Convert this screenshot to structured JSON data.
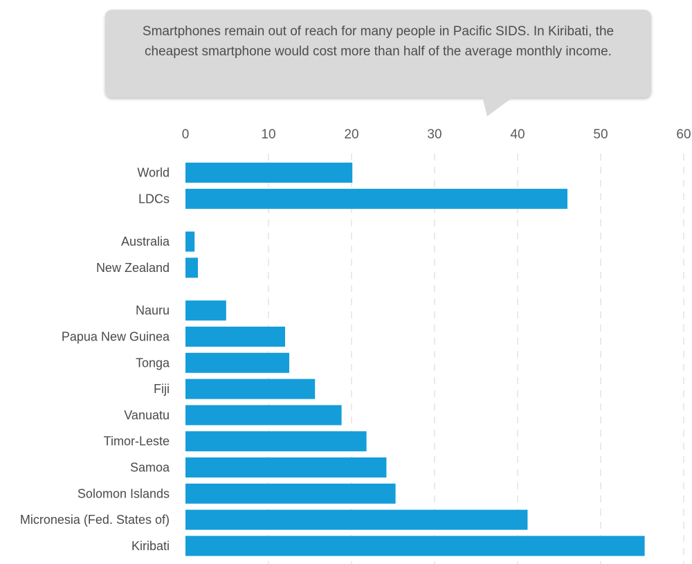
{
  "annotation": "Smartphones remain out of reach for many people in Pacific SIDS. In Kiribati, the cheapest smartphone would cost more than half of the average monthly income.",
  "colors": {
    "bar": "#159dd9",
    "grid": "#d6d6d6",
    "callout": "#d9d9d9"
  },
  "chart_data": {
    "type": "bar",
    "orientation": "horizontal",
    "title": "",
    "xlabel": "",
    "ylabel": "",
    "xlim": [
      0,
      60
    ],
    "ticks": [
      0,
      10,
      20,
      30,
      40,
      50,
      60
    ],
    "grid": true,
    "grid_style": "dashed vertical",
    "axis_position": "top",
    "categories": [
      "World",
      "LDCs",
      "Australia",
      "New Zealand",
      "Nauru",
      "Papua New Guinea",
      "Tonga",
      "Fiji",
      "Vanuatu",
      "Timor-Leste",
      "Samoa",
      "Solomon Islands",
      "Micronesia (Fed. States of)",
      "Kiribati"
    ],
    "groups": [
      [
        "World",
        "LDCs"
      ],
      [
        "Australia",
        "New Zealand"
      ],
      [
        "Nauru",
        "Papua New Guinea",
        "Tonga",
        "Fiji",
        "Vanuatu",
        "Timor-Leste",
        "Samoa",
        "Solomon Islands",
        "Micronesia (Fed. States of)",
        "Kiribati"
      ]
    ],
    "values": [
      20.1,
      46.0,
      1.1,
      1.5,
      4.9,
      12.0,
      12.5,
      15.6,
      18.8,
      21.8,
      24.2,
      25.3,
      41.2,
      55.3
    ]
  }
}
